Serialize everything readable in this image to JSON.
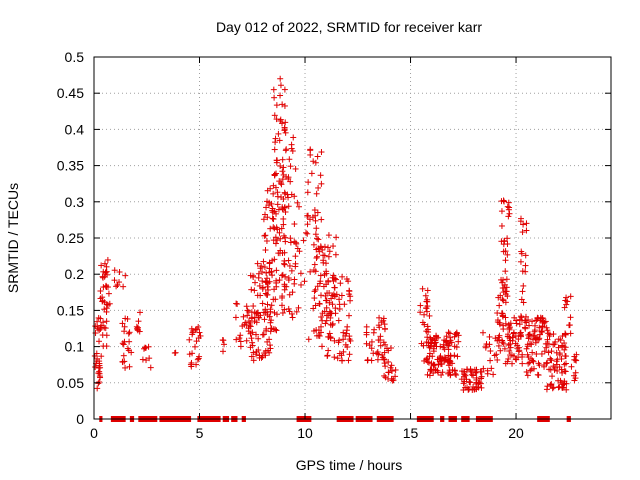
{
  "chart_data": {
    "type": "scatter",
    "title": "Day 012 of 2022, SRMTID for receiver karr",
    "xlabel": "GPS time / hours",
    "ylabel": "SRMTID / TECUs",
    "xlim": [
      0,
      24.5
    ],
    "ylim": [
      0,
      0.5
    ],
    "xticks": [
      0,
      5,
      10,
      15,
      20
    ],
    "xtick_labels": [
      "0",
      "5",
      "10",
      "15",
      "20"
    ],
    "yticks": [
      0,
      0.05,
      0.1,
      0.15,
      0.2,
      0.25,
      0.3,
      0.35,
      0.4,
      0.45,
      0.5
    ],
    "ytick_labels": [
      "0",
      "0.05",
      "0.1",
      "0.15",
      "0.2",
      "0.25",
      "0.3",
      "0.35",
      "0.4",
      "0.45",
      "0.5"
    ],
    "grid": true,
    "marker": "+",
    "color": "#e00000",
    "zero_segments": [
      [
        0.25,
        0.4
      ],
      [
        0.8,
        1.5
      ],
      [
        1.7,
        1.9
      ],
      [
        2.1,
        3.0
      ],
      [
        3.1,
        4.6
      ],
      [
        4.9,
        6.0
      ],
      [
        6.1,
        6.4
      ],
      [
        6.5,
        6.8
      ],
      [
        7.0,
        7.2
      ],
      [
        9.6,
        10.3
      ],
      [
        11.5,
        12.3
      ],
      [
        12.4,
        13.2
      ],
      [
        13.4,
        14.2
      ],
      [
        15.3,
        16.1
      ],
      [
        16.4,
        16.6
      ],
      [
        16.8,
        17.2
      ],
      [
        17.4,
        17.8
      ],
      [
        18.1,
        18.9
      ],
      [
        21.0,
        21.6
      ],
      [
        22.4,
        22.6
      ]
    ],
    "clusters": [
      {
        "x0": 0.0,
        "x1": 0.35,
        "ylo": 0.04,
        "yhi": 0.14,
        "n": 30
      },
      {
        "x0": 0.3,
        "x1": 0.75,
        "ylo": 0.1,
        "yhi": 0.22,
        "n": 40
      },
      {
        "x0": 0.9,
        "x1": 1.5,
        "ylo": 0.17,
        "yhi": 0.21,
        "n": 8
      },
      {
        "x0": 1.3,
        "x1": 1.8,
        "ylo": 0.07,
        "yhi": 0.14,
        "n": 20
      },
      {
        "x0": 1.9,
        "x1": 2.2,
        "ylo": 0.11,
        "yhi": 0.15,
        "n": 8
      },
      {
        "x0": 2.3,
        "x1": 2.7,
        "ylo": 0.07,
        "yhi": 0.1,
        "n": 8
      },
      {
        "x0": 3.8,
        "x1": 3.9,
        "ylo": 0.088,
        "yhi": 0.092,
        "n": 2
      },
      {
        "x0": 4.5,
        "x1": 5.1,
        "ylo": 0.07,
        "yhi": 0.13,
        "n": 22
      },
      {
        "x0": 6.0,
        "x1": 6.2,
        "ylo": 0.09,
        "yhi": 0.12,
        "n": 4
      },
      {
        "x0": 6.7,
        "x1": 7.5,
        "ylo": 0.1,
        "yhi": 0.16,
        "n": 26
      },
      {
        "x0": 7.4,
        "x1": 8.4,
        "ylo": 0.08,
        "yhi": 0.22,
        "n": 80
      },
      {
        "x0": 8.0,
        "x1": 8.7,
        "ylo": 0.12,
        "yhi": 0.32,
        "n": 60
      },
      {
        "x0": 8.5,
        "x1": 9.1,
        "ylo": 0.18,
        "yhi": 0.48,
        "n": 70
      },
      {
        "x0": 8.9,
        "x1": 9.6,
        "ylo": 0.14,
        "yhi": 0.4,
        "n": 60
      },
      {
        "x0": 9.6,
        "x1": 10.1,
        "ylo": 0.14,
        "yhi": 0.32,
        "n": 12
      },
      {
        "x0": 10.1,
        "x1": 10.8,
        "ylo": 0.1,
        "yhi": 0.38,
        "n": 50
      },
      {
        "x0": 10.6,
        "x1": 11.5,
        "ylo": 0.1,
        "yhi": 0.26,
        "n": 60
      },
      {
        "x0": 11.0,
        "x1": 12.2,
        "ylo": 0.08,
        "yhi": 0.2,
        "n": 60
      },
      {
        "x0": 12.9,
        "x1": 13.3,
        "ylo": 0.08,
        "yhi": 0.13,
        "n": 14
      },
      {
        "x0": 13.4,
        "x1": 13.8,
        "ylo": 0.08,
        "yhi": 0.14,
        "n": 22
      },
      {
        "x0": 13.7,
        "x1": 14.3,
        "ylo": 0.05,
        "yhi": 0.1,
        "n": 22
      },
      {
        "x0": 15.4,
        "x1": 15.9,
        "ylo": 0.08,
        "yhi": 0.19,
        "n": 30
      },
      {
        "x0": 15.8,
        "x1": 16.9,
        "ylo": 0.06,
        "yhi": 0.12,
        "n": 80
      },
      {
        "x0": 16.7,
        "x1": 17.3,
        "ylo": 0.06,
        "yhi": 0.12,
        "n": 30
      },
      {
        "x0": 17.4,
        "x1": 18.4,
        "ylo": 0.04,
        "yhi": 0.07,
        "n": 50
      },
      {
        "x0": 18.4,
        "x1": 19.1,
        "ylo": 0.06,
        "yhi": 0.12,
        "n": 16
      },
      {
        "x0": 19.1,
        "x1": 19.6,
        "ylo": 0.07,
        "yhi": 0.2,
        "n": 40
      },
      {
        "x0": 19.3,
        "x1": 19.7,
        "ylo": 0.17,
        "yhi": 0.32,
        "n": 26
      },
      {
        "x0": 19.6,
        "x1": 20.3,
        "ylo": 0.07,
        "yhi": 0.14,
        "n": 50
      },
      {
        "x0": 20.2,
        "x1": 20.5,
        "ylo": 0.12,
        "yhi": 0.3,
        "n": 26
      },
      {
        "x0": 20.5,
        "x1": 21.5,
        "ylo": 0.06,
        "yhi": 0.14,
        "n": 70
      },
      {
        "x0": 21.4,
        "x1": 22.4,
        "ylo": 0.04,
        "yhi": 0.12,
        "n": 70
      },
      {
        "x0": 22.3,
        "x1": 22.6,
        "ylo": 0.11,
        "yhi": 0.17,
        "n": 12
      },
      {
        "x0": 22.6,
        "x1": 22.9,
        "ylo": 0.05,
        "yhi": 0.09,
        "n": 10
      }
    ]
  }
}
